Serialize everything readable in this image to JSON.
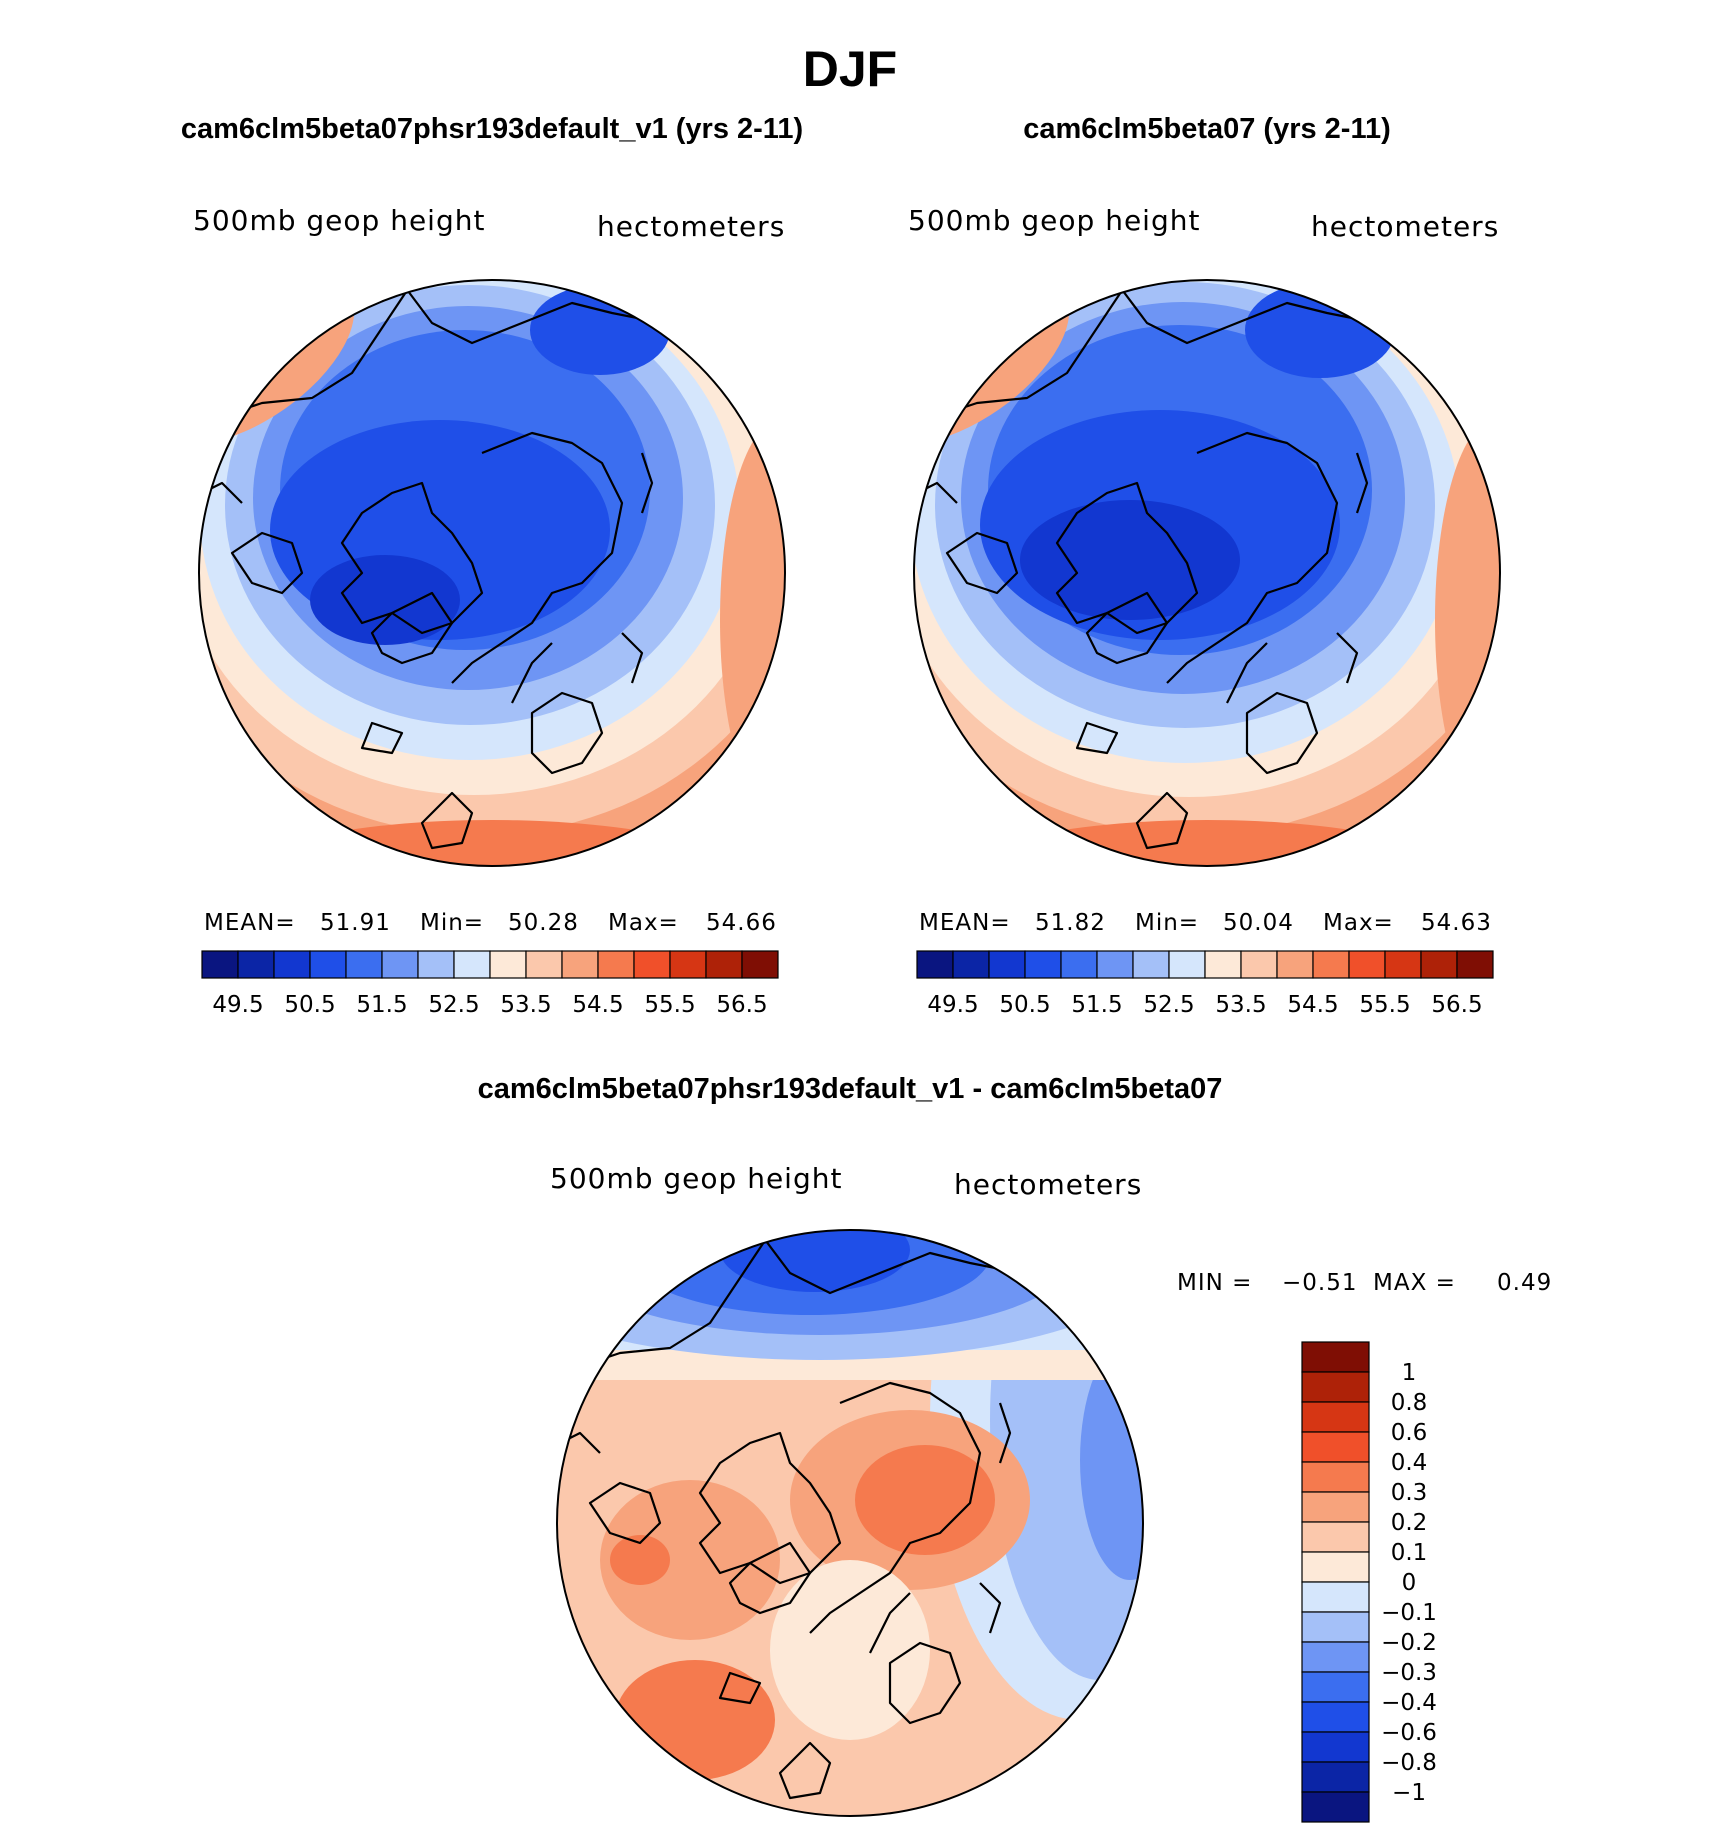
{
  "figure": {
    "season_title": "DJF",
    "colors": {
      "height_palette": [
        "#0a1580",
        "#0b25a6",
        "#1237d0",
        "#1f4fe8",
        "#3b6ef0",
        "#6e95f4",
        "#a4c0f8",
        "#d5e6fc",
        "#fde9d8",
        "#fbc8ac",
        "#f7a37c",
        "#f57a4e",
        "#f0502a",
        "#d63614",
        "#ae2208",
        "#7f0e04"
      ],
      "diff_palette": [
        "#0a1580",
        "#0b25a6",
        "#1237d0",
        "#1f4fe8",
        "#3b6ef0",
        "#6e95f4",
        "#a4c0f8",
        "#d5e6fc",
        "#fde9d8",
        "#fbc8ac",
        "#f7a37c",
        "#f57a4e",
        "#f0502a",
        "#d63614",
        "#ae2208",
        "#7f0e04"
      ]
    },
    "icons": [
      "polar-projection-map-icon",
      "coastline-icon"
    ]
  },
  "chart_data": [
    {
      "type": "heatmap",
      "projection": "north-polar-stereographic",
      "title": "cam6clm5beta07phsr193default_v1 (yrs 2-11)",
      "variable_label": "500mb geop height",
      "units_label": "hectometers",
      "stats": {
        "mean_label": "MEAN=",
        "mean": "51.91",
        "min_label": "Min=",
        "min": "50.28",
        "max_label": "Max=",
        "max": "54.66"
      },
      "colorbar": {
        "orientation": "horizontal",
        "levels": [
          49.5,
          50,
          50.5,
          51,
          51.5,
          52,
          52.5,
          53,
          53.5,
          54,
          54.5,
          55,
          55.5,
          56,
          56.5
        ],
        "tick_labels": [
          "49.5",
          "50.5",
          "51.5",
          "52.5",
          "53.5",
          "54.5",
          "55.5",
          "56.5"
        ]
      }
    },
    {
      "type": "heatmap",
      "projection": "north-polar-stereographic",
      "title": "cam6clm5beta07 (yrs 2-11)",
      "variable_label": "500mb geop height",
      "units_label": "hectometers",
      "stats": {
        "mean_label": "MEAN=",
        "mean": "51.82",
        "min_label": "Min=",
        "min": "50.04",
        "max_label": "Max=",
        "max": "54.63"
      },
      "colorbar": {
        "orientation": "horizontal",
        "levels": [
          49.5,
          50,
          50.5,
          51,
          51.5,
          52,
          52.5,
          53,
          53.5,
          54,
          54.5,
          55,
          55.5,
          56,
          56.5
        ],
        "tick_labels": [
          "49.5",
          "50.5",
          "51.5",
          "52.5",
          "53.5",
          "54.5",
          "55.5",
          "56.5"
        ]
      }
    },
    {
      "type": "heatmap",
      "projection": "north-polar-stereographic",
      "title": "cam6clm5beta07phsr193default_v1 - cam6clm5beta07",
      "variable_label": "500mb geop height",
      "units_label": "hectometers",
      "stats": {
        "min_label": "MIN =",
        "min": "−0.51",
        "max_label": "MAX =",
        "max": "0.49"
      },
      "colorbar": {
        "orientation": "vertical",
        "tick_labels": [
          "1",
          "0.8",
          "0.6",
          "0.4",
          "0.3",
          "0.2",
          "0.1",
          "0",
          "−0.1",
          "−0.2",
          "−0.3",
          "−0.4",
          "−0.6",
          "−0.8",
          "−1"
        ]
      }
    }
  ]
}
